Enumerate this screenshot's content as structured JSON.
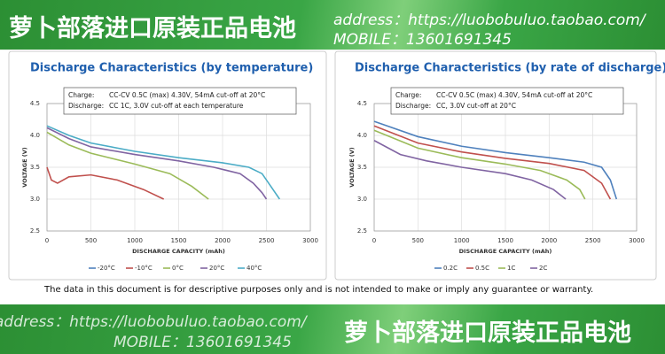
{
  "banner_top": {
    "shop": "萝卜部落进口原装正品电池",
    "address": "address：https://luobobuluo.taobao.com/",
    "mobile": "MOBILE：13601691345"
  },
  "banner_bottom": {
    "shop": "萝卜部落进口原装正品电池",
    "address": "address：https://luobobuluo.taobao.com/",
    "mobile": "MOBILE：13601691345"
  },
  "disclaimer": "The data in this document is for descriptive purposes only and is not intended to make or imply any guarantee or warranty.",
  "chart_data": [
    {
      "type": "line",
      "title": "Discharge Characteristics (by temperature)",
      "annotations": [
        [
          "Charge:",
          "CC-CV 0.5C (max) 4.30V, 54mA cut-off at 20°C"
        ],
        [
          "Discharge:",
          "CC 1C, 3.0V cut-off at each temperature"
        ]
      ],
      "x_label": "DISCHARGE CAPACITY (mAh)",
      "y_label": "VOLTAGE (V)",
      "xlim": [
        0,
        3000
      ],
      "xticks": [
        0,
        500,
        1000,
        1500,
        2000,
        2500,
        3000
      ],
      "ylim": [
        2.5,
        4.5
      ],
      "yticks": [
        2.5,
        {
          "value": 3,
          "label": "3.0"
        },
        3.5,
        {
          "value": 4,
          "label": "4.0"
        },
        4.5
      ],
      "grid": true,
      "series": [
        {
          "name": "-20°C",
          "color": "#4f81bd",
          "x": [],
          "values": []
        },
        {
          "name": "-10°C",
          "color": "#c0504d",
          "x": [
            0,
            50,
            120,
            250,
            500,
            800,
            1100,
            1330
          ],
          "values": [
            3.5,
            3.3,
            3.25,
            3.35,
            3.38,
            3.3,
            3.15,
            3.0
          ]
        },
        {
          "name": "0°C",
          "color": "#9bbb59",
          "x": [
            0,
            250,
            500,
            1000,
            1400,
            1650,
            1840
          ],
          "values": [
            4.05,
            3.85,
            3.72,
            3.55,
            3.4,
            3.2,
            3.0
          ]
        },
        {
          "name": "20°C",
          "color": "#8064a2",
          "x": [
            0,
            250,
            500,
            1000,
            1500,
            1900,
            2200,
            2350,
            2450,
            2500
          ],
          "values": [
            4.12,
            3.95,
            3.82,
            3.7,
            3.6,
            3.5,
            3.4,
            3.25,
            3.1,
            3.0
          ]
        },
        {
          "name": "40°C",
          "color": "#4bacc6",
          "x": [
            0,
            250,
            500,
            1000,
            1500,
            2000,
            2300,
            2450,
            2550,
            2650
          ],
          "values": [
            4.15,
            4.0,
            3.88,
            3.75,
            3.65,
            3.57,
            3.5,
            3.4,
            3.2,
            3.0
          ]
        }
      ]
    },
    {
      "type": "line",
      "title": "Discharge Characteristics (by rate of discharge)",
      "annotations": [
        [
          "Charge:",
          "CC-CV 0.5C (max) 4.30V, 54mA cut-off at 20°C"
        ],
        [
          "Discharge:",
          "CC, 3.0V cut-off at 20°C"
        ]
      ],
      "x_label": "DISCHARGE CAPACITY (mAh)",
      "y_label": "VOLTAGE (V)",
      "xlim": [
        0,
        3000
      ],
      "xticks": [
        0,
        500,
        1000,
        1500,
        2000,
        2500,
        3000
      ],
      "ylim": [
        2.5,
        4.5
      ],
      "yticks": [
        2.5,
        {
          "value": 3,
          "label": "3.0"
        },
        3.5,
        {
          "value": 4,
          "label": "4.0"
        },
        4.5
      ],
      "grid": true,
      "series": [
        {
          "name": "0.2C",
          "color": "#4f81bd",
          "x": [
            0,
            500,
            1000,
            1500,
            2000,
            2400,
            2600,
            2700,
            2770
          ],
          "values": [
            4.22,
            3.98,
            3.83,
            3.73,
            3.65,
            3.58,
            3.5,
            3.3,
            3.0
          ]
        },
        {
          "name": "0.5C",
          "color": "#c0504d",
          "x": [
            0,
            500,
            1000,
            1500,
            2000,
            2400,
            2600,
            2700
          ],
          "values": [
            4.15,
            3.88,
            3.74,
            3.64,
            3.56,
            3.45,
            3.25,
            3.0
          ]
        },
        {
          "name": "1C",
          "color": "#9bbb59",
          "x": [
            0,
            500,
            1000,
            1500,
            1900,
            2200,
            2350,
            2410
          ],
          "values": [
            4.08,
            3.8,
            3.65,
            3.55,
            3.45,
            3.3,
            3.15,
            3.0
          ]
        },
        {
          "name": "2C",
          "color": "#8064a2",
          "x": [
            0,
            300,
            600,
            1000,
            1500,
            1800,
            2050,
            2190
          ],
          "values": [
            3.92,
            3.7,
            3.6,
            3.5,
            3.4,
            3.3,
            3.15,
            3.0
          ]
        }
      ]
    }
  ]
}
